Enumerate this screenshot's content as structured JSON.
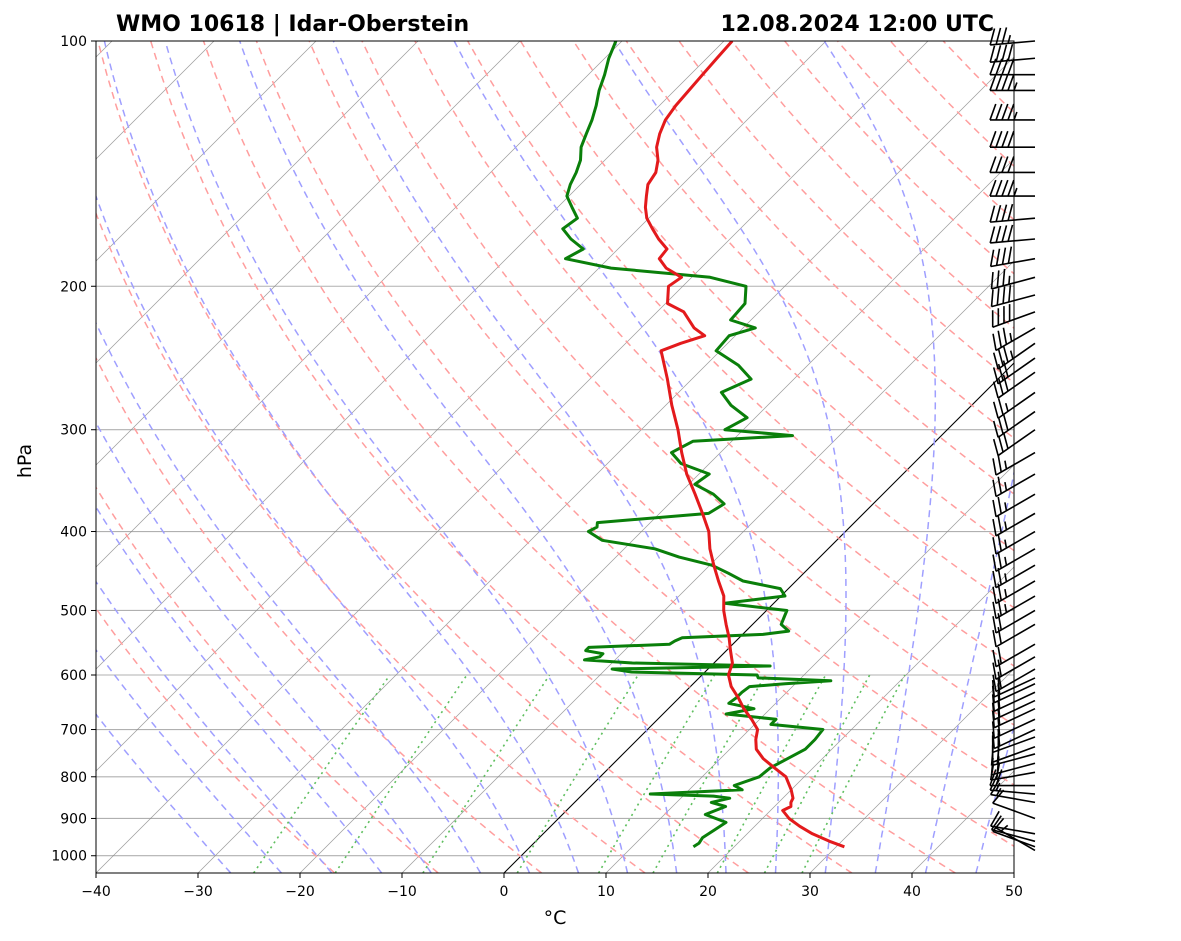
{
  "title_left": "WMO 10618 | Idar-Oberstein",
  "title_right": "12.08.2024 12:00 UTC",
  "chart_data": {
    "type": "skew-t",
    "xlabel": "°C",
    "ylabel": "hPa",
    "xlim": [
      -40,
      50
    ],
    "ylim": [
      1050,
      100
    ],
    "x_ticks": [
      -40,
      -30,
      -20,
      -10,
      0,
      10,
      20,
      30,
      40,
      50
    ],
    "x_tick_labels": [
      "−40",
      "−30",
      "−20",
      "−10",
      "0",
      "10",
      "20",
      "30",
      "40",
      "50"
    ],
    "y_ticks": [
      100,
      200,
      300,
      400,
      500,
      600,
      700,
      800,
      900,
      1000
    ],
    "y_tick_labels": [
      "100",
      "200",
      "300",
      "400",
      "500",
      "600",
      "700",
      "800",
      "900",
      "1000"
    ],
    "colors": {
      "temperature": "#e31a1c",
      "dewpoint": "#0a7f0a",
      "dry_adiabats": "#ff9e9e",
      "moist_adiabats": "#9f9fff",
      "mixing_ratio": "#5fbf5f",
      "isotherms": "#8a8a8a",
      "zero_isotherm": "#000000",
      "barbs": "#000000"
    },
    "dry_adiabats_theta_K": [
      253,
      263,
      273,
      283,
      293,
      303,
      313,
      323,
      333,
      343,
      353,
      363,
      373,
      383,
      393,
      403,
      413,
      423,
      433,
      443,
      453
    ],
    "moist_adiabats_thetaw_C": [
      -30,
      -25,
      -20,
      -15,
      -10,
      -5,
      0,
      5,
      10,
      15,
      20,
      25,
      30,
      35,
      40,
      45
    ],
    "mixing_ratio_gkg": [
      0.5,
      1,
      2,
      4,
      7,
      10,
      15,
      20,
      25
    ],
    "temperature_profile": {
      "pressure_hPa": [
        975,
        960,
        940,
        920,
        900,
        880,
        870,
        860,
        850,
        830,
        800,
        780,
        760,
        740,
        720,
        700,
        680,
        660,
        640,
        620,
        600,
        580,
        560,
        540,
        520,
        500,
        480,
        460,
        440,
        420,
        400,
        380,
        360,
        340,
        320,
        300,
        280,
        260,
        240,
        235,
        230,
        225,
        215,
        210,
        200,
        195,
        190,
        185,
        180,
        175,
        170,
        165,
        160,
        155,
        150,
        145,
        140,
        135,
        130,
        125,
        120,
        115,
        110,
        105,
        100
      ],
      "temp_C": [
        30.8,
        28.8,
        26.4,
        24.4,
        22.6,
        21.2,
        21.6,
        21.2,
        21.0,
        20.0,
        18.2,
        16.2,
        14.2,
        12.6,
        11.6,
        10.8,
        9.2,
        7.4,
        5.8,
        4.0,
        2.6,
        1.8,
        0.4,
        -1.0,
        -2.6,
        -4.2,
        -5.6,
        -7.6,
        -9.6,
        -11.6,
        -13.4,
        -15.8,
        -18.4,
        -21.2,
        -23.8,
        -26.4,
        -29.4,
        -32.4,
        -35.8,
        -34.6,
        -33.0,
        -34.8,
        -37.4,
        -39.8,
        -41.4,
        -41.0,
        -43.4,
        -45.0,
        -45.2,
        -47.0,
        -48.6,
        -50.2,
        -51.4,
        -52.4,
        -53.4,
        -53.8,
        -54.8,
        -56.2,
        -57.2,
        -58.0,
        -58.4,
        -58.6,
        -58.8,
        -59.0,
        -59.2
      ]
    },
    "dewpoint_profile": {
      "pressure_hPa": [
        975,
        965,
        950,
        930,
        910,
        890,
        870,
        860,
        850,
        845,
        840,
        830,
        820,
        800,
        780,
        760,
        740,
        720,
        700,
        690,
        680,
        670,
        660,
        650,
        640,
        630,
        620,
        615,
        610,
        605,
        600,
        595,
        590,
        585,
        580,
        575,
        570,
        565,
        560,
        555,
        550,
        545,
        540,
        535,
        530,
        520,
        510,
        500,
        490,
        480,
        470,
        460,
        450,
        440,
        430,
        420,
        410,
        400,
        395,
        390,
        380,
        370,
        360,
        350,
        340,
        330,
        320,
        310,
        305,
        300,
        290,
        280,
        270,
        260,
        250,
        240,
        230,
        225,
        220,
        210,
        200,
        195,
        190,
        185,
        180,
        175,
        170,
        165,
        160,
        155,
        150,
        145,
        140,
        135,
        130,
        125,
        120,
        115,
        110,
        105,
        100
      ],
      "dewp_C": [
        16.0,
        16.2,
        16.0,
        16.4,
        16.8,
        14.0,
        15.2,
        13.4,
        14.8,
        13.0,
        6.6,
        15.2,
        14.0,
        15.6,
        15.8,
        16.6,
        17.4,
        17.4,
        17.2,
        11.6,
        11.6,
        6.2,
        8.4,
        5.4,
        5.6,
        5.6,
        5.8,
        9.0,
        13.2,
        5.8,
        5.4,
        -7.2,
        -9.4,
        5.8,
        -8.0,
        -13.0,
        -11.8,
        -11.8,
        -13.8,
        -13.8,
        -6.2,
        -6.0,
        -5.6,
        2.0,
        4.2,
        2.8,
        2.4,
        2.0,
        -4.8,
        0.4,
        -0.8,
        -5.2,
        -7.4,
        -9.8,
        -13.8,
        -17.0,
        -23.0,
        -25.2,
        -24.8,
        -25.2,
        -15.2,
        -14.6,
        -16.6,
        -19.4,
        -19.0,
        -22.8,
        -24.8,
        -23.8,
        -14.6,
        -21.8,
        -20.8,
        -23.6,
        -25.8,
        -24.2,
        -26.8,
        -30.4,
        -30.6,
        -28.8,
        -32.0,
        -32.2,
        -33.8,
        -38.2,
        -48.8,
        -54.2,
        -53.4,
        -55.6,
        -57.4,
        -57.0,
        -58.6,
        -60.2,
        -61.0,
        -61.6,
        -62.4,
        -63.6,
        -64.4,
        -65.2,
        -66.2,
        -67.4,
        -68.4,
        -69.6,
        -70.6
      ]
    },
    "wind_barbs": {
      "pressure_hPa": [
        985,
        975,
        960,
        940,
        900,
        860,
        840,
        820,
        790,
        770,
        750,
        735,
        715,
        700,
        680,
        660,
        645,
        630,
        615,
        605,
        590,
        570,
        550,
        520,
        500,
        480,
        460,
        440,
        420,
        400,
        380,
        360,
        340,
        320,
        300,
        285,
        270,
        255,
        245,
        235,
        225,
        215,
        205,
        195,
        185,
        175,
        165,
        155,
        145,
        135,
        125,
        115,
        110,
        105,
        100
      ],
      "speed_kt": [
        5,
        10,
        10,
        10,
        10,
        15,
        15,
        20,
        20,
        20,
        20,
        20,
        20,
        20,
        20,
        20,
        20,
        20,
        20,
        20,
        20,
        20,
        20,
        20,
        20,
        25,
        25,
        25,
        25,
        25,
        25,
        25,
        25,
        25,
        30,
        30,
        25,
        30,
        30,
        35,
        35,
        40,
        40,
        35,
        40,
        40,
        40,
        45,
        40,
        40,
        45,
        45,
        40,
        40,
        35
      ],
      "direction_deg": [
        300,
        290,
        285,
        280,
        290,
        280,
        275,
        270,
        260,
        255,
        255,
        250,
        250,
        245,
        245,
        245,
        245,
        245,
        245,
        245,
        240,
        240,
        240,
        240,
        240,
        240,
        240,
        240,
        240,
        240,
        240,
        240,
        240,
        240,
        235,
        235,
        235,
        235,
        235,
        235,
        240,
        250,
        255,
        255,
        260,
        265,
        265,
        270,
        270,
        270,
        270,
        270,
        270,
        265,
        265
      ]
    }
  }
}
